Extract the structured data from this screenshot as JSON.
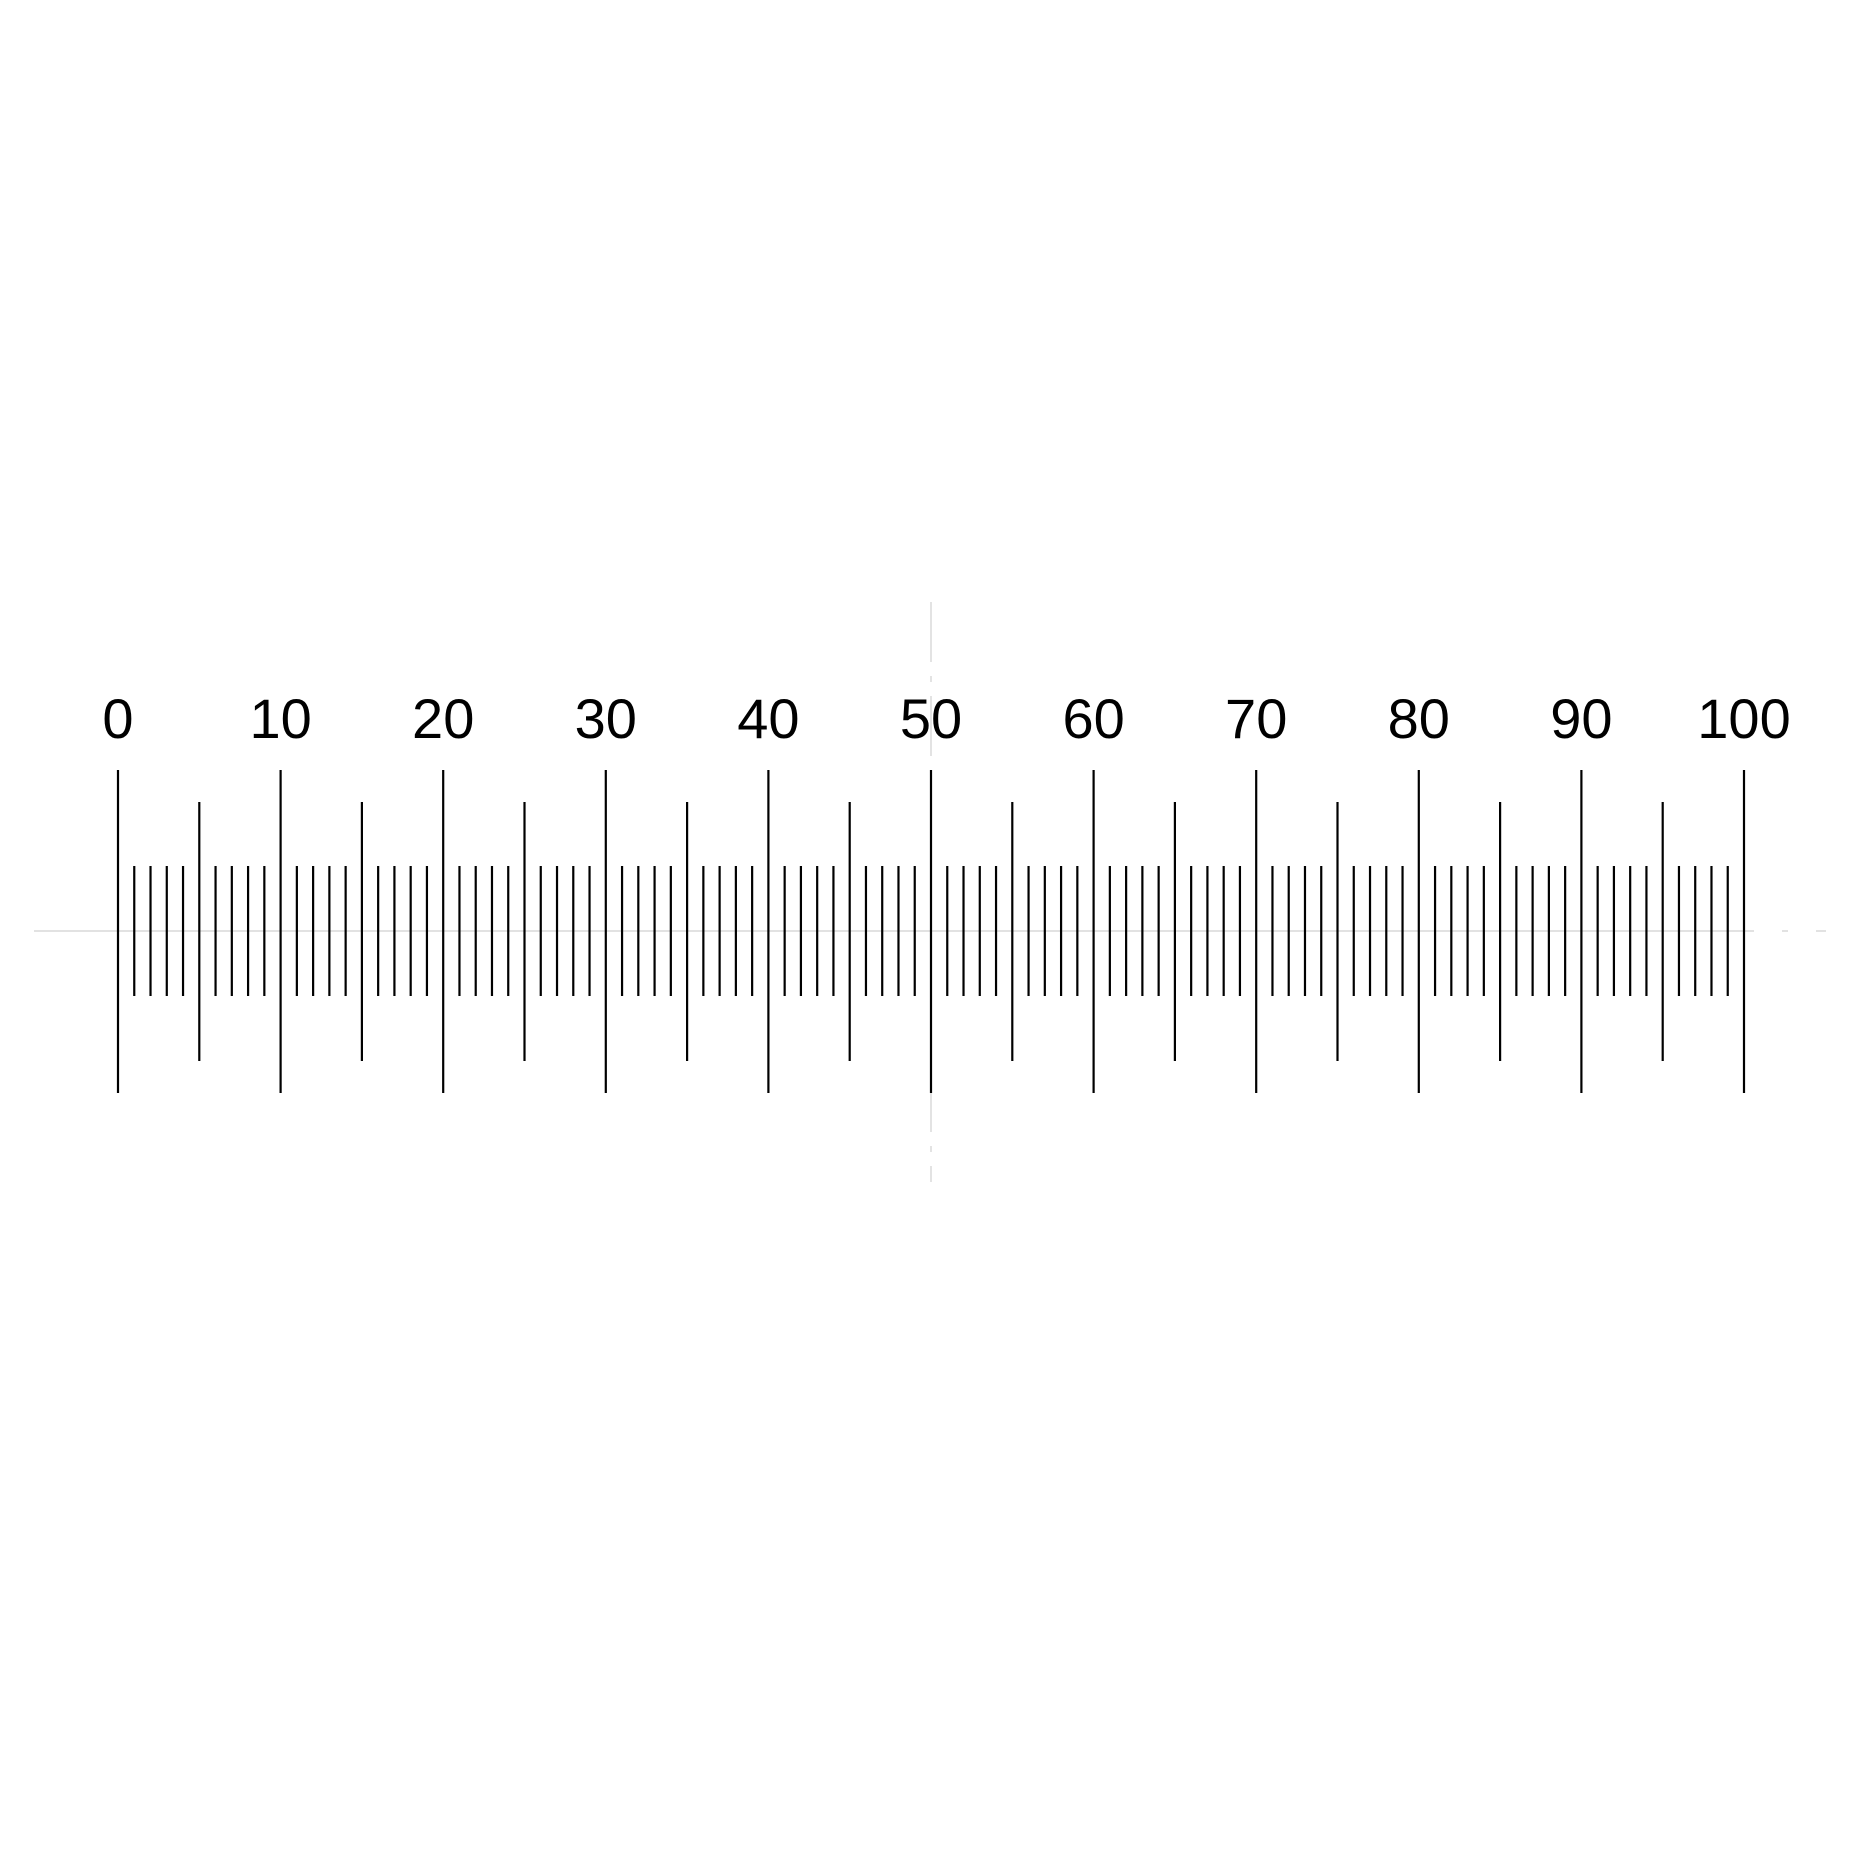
{
  "scale": {
    "min": 0,
    "max": 100,
    "major_interval": 10,
    "mid_interval": 5,
    "minor_interval": 1,
    "labels": [
      "0",
      "10",
      "20",
      "30",
      "40",
      "50",
      "60",
      "70",
      "80",
      "90",
      "100"
    ]
  },
  "crosshair": {
    "center_value": 50,
    "style": "dash-dot"
  },
  "colors": {
    "background": "#ffffff",
    "ticks": "#000000",
    "labels": "#000000",
    "crosshair": "#d0d0d0"
  }
}
